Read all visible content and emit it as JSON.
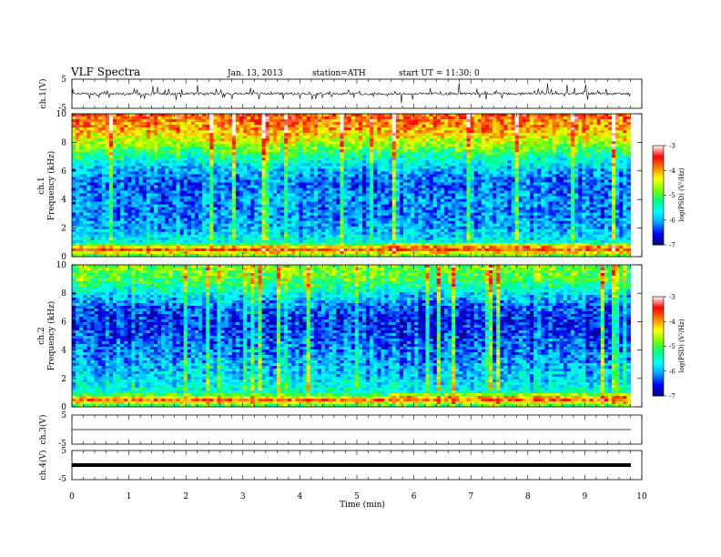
{
  "header": {
    "title": "VLF  Spectra",
    "date": "Jan. 13, 2013",
    "station": "station=ATH",
    "start": "start  UT =    11:30: 0"
  },
  "chart_data": [
    {
      "type": "line",
      "name": "ch1-waveform",
      "ylabel": "ch.1(V)",
      "ylim": [
        -5,
        5
      ],
      "y_ticks": [
        "5",
        "-5"
      ],
      "x_range_min": [
        0,
        9.8
      ],
      "amplitude_note": "noisy trace around 0 V with spikes to about +/-2 V"
    },
    {
      "type": "heatmap",
      "name": "ch1-spectrogram",
      "ylabel": "ch.1\nFrequency  (kHz)",
      "ylim": [
        0,
        10
      ],
      "y_ticks": [
        "0",
        "2",
        "4",
        "6",
        "8",
        "10"
      ],
      "x_range_min": [
        0,
        9.8
      ],
      "colorbar": {
        "label": "log(PSD) (V²/Hz)",
        "ticks": [
          "-3",
          "-4",
          "-5",
          "-6",
          "-7"
        ],
        "range": [
          -7,
          -3
        ]
      },
      "level_profile_by_khz": [
        [
          0,
          -5.2
        ],
        [
          0.5,
          -3.6
        ],
        [
          1,
          -5.6
        ],
        [
          2,
          -6.0
        ],
        [
          3,
          -6.2
        ],
        [
          4,
          -6.1
        ],
        [
          5,
          -6.3
        ],
        [
          6,
          -6.0
        ],
        [
          7,
          -5.4
        ],
        [
          8,
          -4.6
        ],
        [
          9,
          -4.0
        ],
        [
          10,
          -3.7
        ]
      ]
    },
    {
      "type": "heatmap",
      "name": "ch2-spectrogram",
      "ylabel": "ch.2\nFrequency  (kHz)",
      "ylim": [
        0,
        10
      ],
      "y_ticks": [
        "0",
        "2",
        "4",
        "6",
        "8",
        "10"
      ],
      "x_range_min": [
        0,
        9.8
      ],
      "colorbar": {
        "label": "log(PSD) (V²/Hz)",
        "ticks": [
          "-3",
          "-4",
          "-5",
          "-6",
          "-7"
        ],
        "range": [
          -7,
          -3
        ]
      },
      "level_profile_by_khz": [
        [
          0,
          -5.2
        ],
        [
          0.5,
          -3.8
        ],
        [
          1,
          -5.5
        ],
        [
          2,
          -5.8
        ],
        [
          3,
          -6.0
        ],
        [
          4,
          -6.2
        ],
        [
          5,
          -6.4
        ],
        [
          6,
          -6.5
        ],
        [
          7,
          -6.3
        ],
        [
          8,
          -5.7
        ],
        [
          9,
          -5.0
        ],
        [
          10,
          -4.8
        ]
      ]
    },
    {
      "type": "line",
      "name": "ch3-waveform",
      "ylabel": "ch.3(V)",
      "ylim": [
        -5,
        5
      ],
      "y_ticks": [
        "5",
        "-5"
      ],
      "x_range_min": [
        0,
        9.8
      ],
      "amplitude_note": "flat trace near 0 V"
    },
    {
      "type": "line",
      "name": "ch4-waveform",
      "ylabel": "ch.4(V)",
      "ylim": [
        -5,
        5
      ],
      "y_ticks": [
        "5",
        "-5"
      ],
      "x_range_min": [
        0,
        9.8
      ],
      "amplitude_note": "thick constant band near 0 V"
    }
  ],
  "xaxis": {
    "label": "Time  (min)",
    "range": [
      0,
      10
    ],
    "ticks": [
      "0",
      "1",
      "2",
      "3",
      "4",
      "5",
      "6",
      "7",
      "8",
      "9",
      "10"
    ]
  },
  "colors": {
    "colormap": [
      "#000080",
      "#0000ff",
      "#00a0ff",
      "#00ffff",
      "#00ff80",
      "#80ff00",
      "#ffff00",
      "#ff8000",
      "#ff0000",
      "#ffffff"
    ]
  }
}
